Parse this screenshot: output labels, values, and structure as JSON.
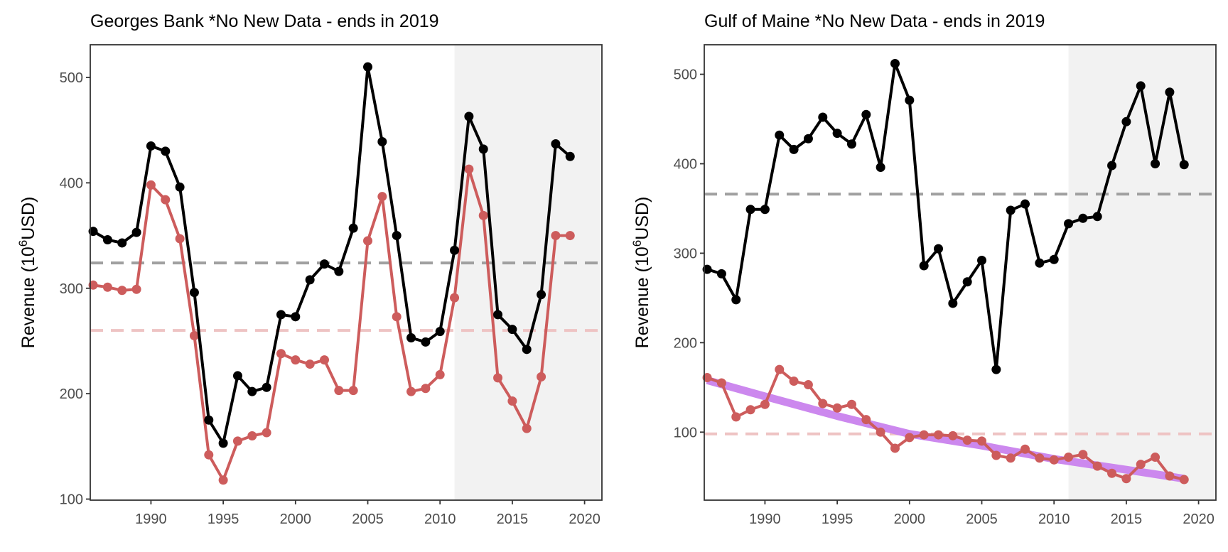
{
  "chart_data": [
    {
      "type": "line",
      "title": "Georges Bank *No New Data - ends in 2019",
      "ylabel": "Revenue (10",
      "ylabel_sup": "6",
      "ylabel_end": "USD)",
      "xlim": [
        1985.8,
        2021.2
      ],
      "ylim": [
        99,
        531
      ],
      "xticks": [
        1990,
        1995,
        2000,
        2005,
        2010,
        2015,
        2020
      ],
      "yticks": [
        100,
        200,
        300,
        400,
        500
      ],
      "grid": false,
      "shaded_region": [
        2011,
        2021.2
      ],
      "colors": {
        "total": "#000000",
        "managed": "#cd5c5c",
        "total_mean": "#a0a0a0",
        "managed_mean": "#eec3c3",
        "shade": "#f2f2f2",
        "trend": "#cc88ee"
      },
      "hlines": [
        {
          "series": "total",
          "y": 324
        },
        {
          "series": "managed",
          "y": 260
        }
      ],
      "x": [
        1986,
        1987,
        1988,
        1989,
        1990,
        1991,
        1992,
        1993,
        1994,
        1995,
        1996,
        1997,
        1998,
        1999,
        2000,
        2001,
        2002,
        2003,
        2004,
        2005,
        2006,
        2007,
        2008,
        2009,
        2010,
        2011,
        2012,
        2013,
        2014,
        2015,
        2016,
        2017,
        2018,
        2019
      ],
      "series": [
        {
          "id": "total",
          "values": [
            354,
            346,
            343,
            353,
            435,
            430,
            396,
            296,
            175,
            153,
            217,
            202,
            206,
            275,
            273,
            308,
            323,
            316,
            357,
            510,
            439,
            350,
            253,
            249,
            259,
            336,
            463,
            432,
            275,
            261,
            242,
            294,
            437,
            425
          ]
        },
        {
          "id": "managed",
          "values": [
            303,
            301,
            298,
            299,
            398,
            384,
            347,
            255,
            142,
            118,
            155,
            160,
            163,
            238,
            232,
            228,
            232,
            203,
            203,
            345,
            387,
            273,
            202,
            205,
            218,
            291,
            413,
            369,
            215,
            193,
            167,
            216,
            350,
            350
          ]
        }
      ]
    },
    {
      "type": "line",
      "title": "Gulf of Maine *No New Data - ends in 2019",
      "ylabel": "Revenue (10",
      "ylabel_sup": "6",
      "ylabel_end": "USD)",
      "xlim": [
        1985.8,
        2021.2
      ],
      "ylim": [
        24,
        533
      ],
      "xticks": [
        1990,
        1995,
        2000,
        2005,
        2010,
        2015,
        2020
      ],
      "yticks": [
        100,
        200,
        300,
        400,
        500
      ],
      "grid": false,
      "shaded_region": [
        2011,
        2021.2
      ],
      "colors": {
        "total": "#000000",
        "managed": "#cd5c5c",
        "total_mean": "#a0a0a0",
        "managed_mean": "#eec3c3",
        "shade": "#f2f2f2",
        "trend": "#cc88ee"
      },
      "hlines": [
        {
          "series": "total",
          "y": 366
        },
        {
          "series": "managed",
          "y": 98
        }
      ],
      "trend": {
        "series": "managed",
        "x": [
          1986,
          1990,
          1995,
          2000,
          2005,
          2010,
          2015,
          2019
        ],
        "values": [
          158,
          140,
          118,
          98,
          85,
          70,
          58,
          48
        ]
      },
      "x": [
        1986,
        1987,
        1988,
        1989,
        1990,
        1991,
        1992,
        1993,
        1994,
        1995,
        1996,
        1997,
        1998,
        1999,
        2000,
        2001,
        2002,
        2003,
        2004,
        2005,
        2006,
        2007,
        2008,
        2009,
        2010,
        2011,
        2012,
        2013,
        2014,
        2015,
        2016,
        2017,
        2018,
        2019
      ],
      "series": [
        {
          "id": "total",
          "values": [
            282,
            277,
            248,
            349,
            349,
            432,
            416,
            428,
            452,
            434,
            422,
            455,
            396,
            512,
            471,
            286,
            305,
            244,
            268,
            292,
            170,
            348,
            355,
            289,
            293,
            333,
            339,
            341,
            398,
            447,
            487,
            400,
            480,
            399
          ]
        },
        {
          "id": "managed",
          "values": [
            161,
            155,
            117,
            125,
            131,
            170,
            157,
            153,
            132,
            127,
            131,
            114,
            100,
            82,
            94,
            97,
            97,
            96,
            91,
            90,
            74,
            71,
            81,
            71,
            69,
            72,
            75,
            62,
            54,
            48,
            64,
            72,
            51,
            47
          ]
        }
      ]
    }
  ]
}
